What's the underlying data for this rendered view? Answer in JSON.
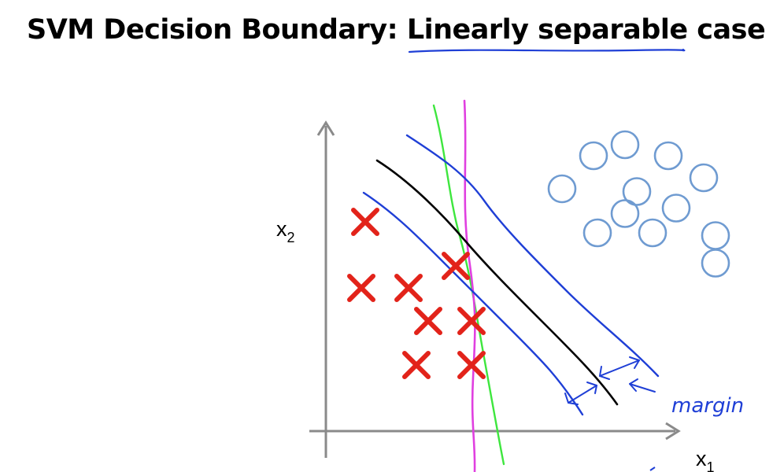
{
  "slide": {
    "title_main": "SVM Decision Boundary: ",
    "title_emph": "Linearly separable",
    "title_tail": " case"
  },
  "colors": {
    "axis": "#8a8a8a",
    "cross": "#e2231a",
    "circle": "#6f9bd1",
    "decision_boundary": "#000000",
    "margin_lines": "#1f3fd6",
    "alt_boundary_green": "#3ee63e",
    "alt_boundary_magenta": "#e040e0",
    "annotation": "#1f3fd6"
  },
  "chart_data": {
    "type": "scatter",
    "title": "",
    "xlabel": "x1",
    "ylabel": "x2",
    "grid": false,
    "series": [
      {
        "name": "",
        "marker": "cross",
        "points": [
          [
            0.5,
            3.8
          ],
          [
            0.45,
            2.6
          ],
          [
            1.05,
            2.6
          ],
          [
            1.3,
            2.0
          ],
          [
            1.85,
            2.0
          ],
          [
            1.15,
            1.2
          ],
          [
            1.85,
            1.2
          ],
          [
            1.65,
            3.0
          ]
        ]
      },
      {
        "name": "",
        "marker": "circle",
        "points": [
          [
            3.4,
            5.0
          ],
          [
            3.8,
            5.2
          ],
          [
            4.35,
            5.0
          ],
          [
            4.8,
            4.6
          ],
          [
            3.95,
            4.35
          ],
          [
            4.45,
            4.05
          ],
          [
            3.8,
            3.95
          ],
          [
            3.45,
            3.6
          ],
          [
            4.15,
            3.6
          ],
          [
            4.95,
            3.55
          ],
          [
            4.95,
            3.05
          ],
          [
            3.0,
            4.4
          ]
        ]
      }
    ],
    "annotations": {
      "margin_label": "margin"
    }
  }
}
